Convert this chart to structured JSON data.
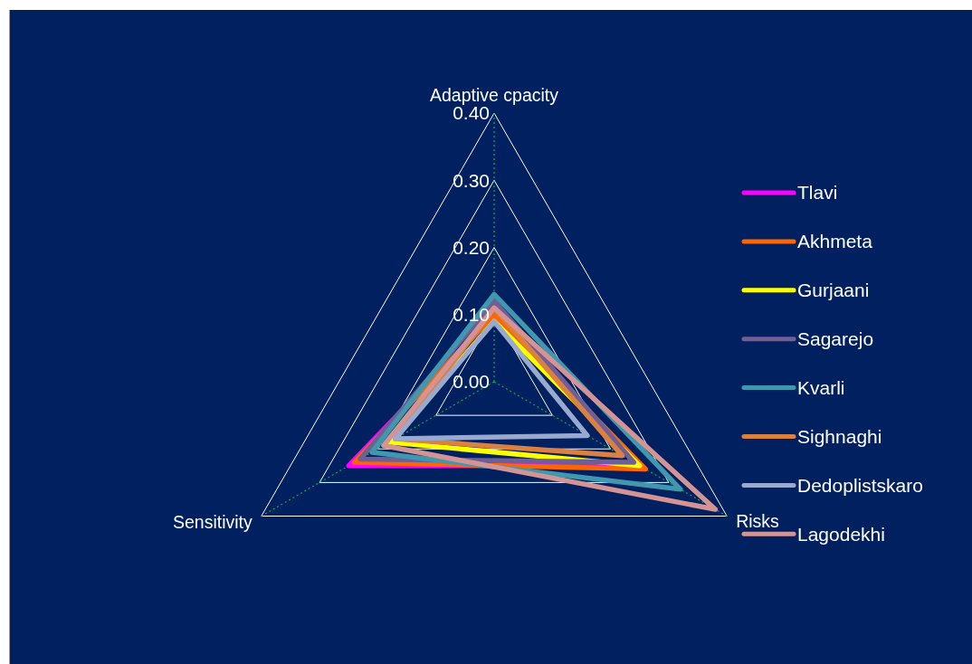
{
  "chart_data": {
    "type": "radar",
    "categories": [
      "Adaptive cpacity",
      "Risks",
      "Sensitivity"
    ],
    "series": [
      {
        "name": "Tlavi",
        "color": "#ff00ff",
        "values": [
          0.1,
          0.25,
          0.25
        ]
      },
      {
        "name": "Akhmeta",
        "color": "#ff6600",
        "values": [
          0.1,
          0.26,
          0.24
        ]
      },
      {
        "name": "Gurjaani",
        "color": "#ffff00",
        "values": [
          0.09,
          0.25,
          0.18
        ]
      },
      {
        "name": "Sagarejo",
        "color": "#6e5f96",
        "values": [
          0.12,
          0.24,
          0.23
        ]
      },
      {
        "name": "Kvarli",
        "color": "#3f98ae",
        "values": [
          0.13,
          0.32,
          0.21
        ]
      },
      {
        "name": "Sighnaghi",
        "color": "#dc8040",
        "values": [
          0.11,
          0.22,
          0.17
        ]
      },
      {
        "name": "Dedoplistskaro",
        "color": "#98aad0",
        "values": [
          0.09,
          0.16,
          0.17
        ]
      },
      {
        "name": "Lagodekhi",
        "color": "#d49494",
        "values": [
          0.11,
          0.38,
          0.19
        ]
      }
    ],
    "ylim": [
      0,
      0.4
    ],
    "yticks": [
      {
        "value": 0,
        "label": "0.00"
      },
      {
        "value": 0.1,
        "label": "0.10"
      },
      {
        "value": 0.2,
        "label": "0.20"
      },
      {
        "value": 0.3,
        "label": "0.30"
      },
      {
        "value": 0.4,
        "label": "0.40"
      }
    ],
    "grid": true,
    "legend": "right",
    "line_style": "solid"
  }
}
